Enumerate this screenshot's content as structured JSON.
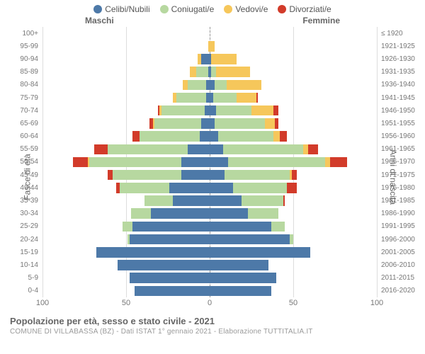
{
  "chart": {
    "type": "population-pyramid",
    "legend": [
      {
        "label": "Celibi/Nubili",
        "color": "#4d79a8"
      },
      {
        "label": "Coniugati/e",
        "color": "#b7d8a0"
      },
      {
        "label": "Vedovi/e",
        "color": "#f6c75b"
      },
      {
        "label": "Divorziati/e",
        "color": "#d23b2a"
      }
    ],
    "side_left_label": "Maschi",
    "side_right_label": "Femmine",
    "y_left_title": "Fasce di età",
    "y_right_title": "Anni di nascita",
    "x_max": 100,
    "x_ticks": [
      100,
      50,
      0,
      50,
      100
    ],
    "grid_color": "#dddddd",
    "center_line_color": "#999999",
    "background_color": "#ffffff",
    "label_fontsize": 10,
    "axis_fontsize": 12,
    "rows": [
      {
        "age": "100+",
        "birth": "≤ 1920",
        "m": [
          0,
          0,
          0,
          0
        ],
        "f": [
          0,
          0,
          0,
          0
        ]
      },
      {
        "age": "95-99",
        "birth": "1921-1925",
        "m": [
          0,
          0,
          1,
          0
        ],
        "f": [
          0,
          0,
          3,
          0
        ]
      },
      {
        "age": "90-94",
        "birth": "1926-1930",
        "m": [
          5,
          0,
          2,
          0
        ],
        "f": [
          1,
          0,
          15,
          0
        ]
      },
      {
        "age": "85-89",
        "birth": "1931-1935",
        "m": [
          1,
          7,
          4,
          0
        ],
        "f": [
          1,
          3,
          20,
          0
        ]
      },
      {
        "age": "80-84",
        "birth": "1936-1940",
        "m": [
          2,
          11,
          3,
          0
        ],
        "f": [
          3,
          7,
          21,
          0
        ]
      },
      {
        "age": "75-79",
        "birth": "1941-1945",
        "m": [
          2,
          18,
          2,
          0
        ],
        "f": [
          2,
          14,
          12,
          1
        ]
      },
      {
        "age": "70-74",
        "birth": "1946-1950",
        "m": [
          3,
          26,
          1,
          1
        ],
        "f": [
          4,
          21,
          13,
          3
        ]
      },
      {
        "age": "65-69",
        "birth": "1951-1955",
        "m": [
          5,
          28,
          1,
          2
        ],
        "f": [
          3,
          30,
          6,
          2
        ]
      },
      {
        "age": "60-64",
        "birth": "1956-1960",
        "m": [
          6,
          36,
          0,
          4
        ],
        "f": [
          5,
          33,
          4,
          4
        ]
      },
      {
        "age": "55-59",
        "birth": "1961-1965",
        "m": [
          13,
          48,
          0,
          8
        ],
        "f": [
          8,
          48,
          3,
          6
        ]
      },
      {
        "age": "50-54",
        "birth": "1966-1970",
        "m": [
          17,
          55,
          1,
          9
        ],
        "f": [
          11,
          58,
          3,
          10
        ]
      },
      {
        "age": "45-49",
        "birth": "1971-1975",
        "m": [
          17,
          41,
          0,
          3
        ],
        "f": [
          9,
          39,
          1,
          3
        ]
      },
      {
        "age": "40-44",
        "birth": "1976-1980",
        "m": [
          24,
          30,
          0,
          2
        ],
        "f": [
          14,
          32,
          0,
          6
        ]
      },
      {
        "age": "35-39",
        "birth": "1981-1985",
        "m": [
          22,
          17,
          0,
          0
        ],
        "f": [
          19,
          25,
          0,
          1
        ]
      },
      {
        "age": "30-34",
        "birth": "1986-1990",
        "m": [
          35,
          12,
          0,
          0
        ],
        "f": [
          23,
          18,
          0,
          0
        ]
      },
      {
        "age": "25-29",
        "birth": "1991-1995",
        "m": [
          46,
          6,
          0,
          0
        ],
        "f": [
          37,
          8,
          0,
          0
        ]
      },
      {
        "age": "20-24",
        "birth": "1996-2000",
        "m": [
          48,
          1,
          0,
          0
        ],
        "f": [
          48,
          2,
          0,
          0
        ]
      },
      {
        "age": "15-19",
        "birth": "2001-2005",
        "m": [
          68,
          0,
          0,
          0
        ],
        "f": [
          60,
          0,
          0,
          0
        ]
      },
      {
        "age": "10-14",
        "birth": "2006-2010",
        "m": [
          55,
          0,
          0,
          0
        ],
        "f": [
          35,
          0,
          0,
          0
        ]
      },
      {
        "age": "5-9",
        "birth": "2011-2015",
        "m": [
          48,
          0,
          0,
          0
        ],
        "f": [
          40,
          0,
          0,
          0
        ]
      },
      {
        "age": "0-4",
        "birth": "2016-2020",
        "m": [
          45,
          0,
          0,
          0
        ],
        "f": [
          37,
          0,
          0,
          0
        ]
      }
    ],
    "footer_title": "Popolazione per età, sesso e stato civile - 2021",
    "footer_sub": "COMUNE DI VILLABASSA (BZ) - Dati ISTAT 1° gennaio 2021 - Elaborazione TUTTITALIA.IT"
  }
}
